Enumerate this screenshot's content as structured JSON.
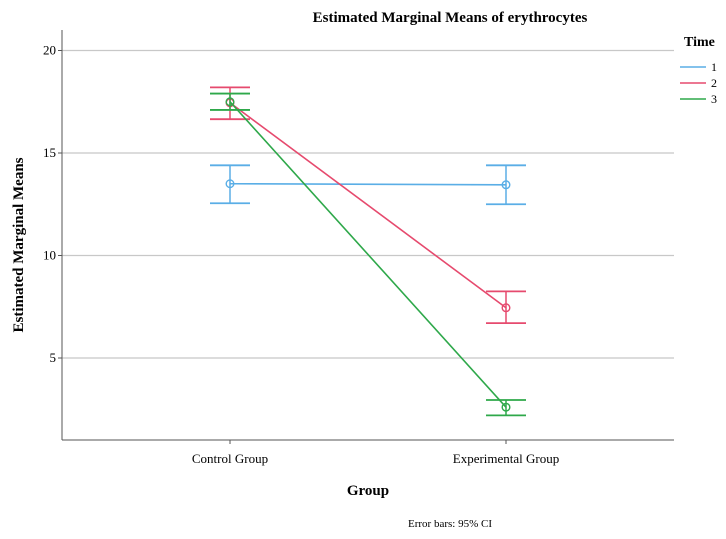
{
  "chart_data": {
    "type": "line",
    "title": "Estimated Marginal Means of erythrocytes",
    "xlabel": "Group",
    "ylabel": "Estimated Marginal Means",
    "categories": [
      "Control Group",
      "Experimental Group"
    ],
    "ylim": [
      1,
      21
    ],
    "yticks": [
      5,
      10,
      15,
      20
    ],
    "grid": "horizontal",
    "legend": {
      "title": "Time",
      "placement": "top-right"
    },
    "footnote": "Error bars: 95% CI",
    "series": [
      {
        "name": "1",
        "color": "#5aaee6",
        "values": [
          13.5,
          13.45
        ],
        "ci_lower": [
          12.55,
          12.5
        ],
        "ci_upper": [
          14.4,
          14.4
        ]
      },
      {
        "name": "2",
        "color": "#e64a6e",
        "values": [
          17.45,
          7.45
        ],
        "ci_lower": [
          16.65,
          6.7
        ],
        "ci_upper": [
          18.2,
          8.25
        ]
      },
      {
        "name": "3",
        "color": "#2ea84a",
        "values": [
          17.5,
          2.6
        ],
        "ci_lower": [
          17.1,
          2.2
        ],
        "ci_upper": [
          17.9,
          2.95
        ]
      }
    ]
  }
}
